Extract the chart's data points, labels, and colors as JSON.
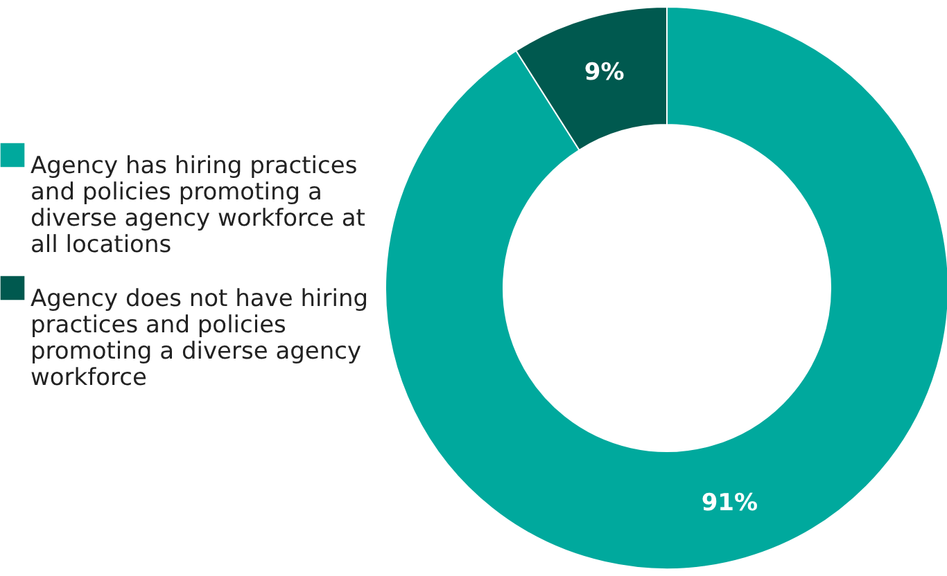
{
  "chart_data": {
    "type": "donut",
    "categories": [
      "Agency has hiring practices and policies promoting a diverse agency workforce at all locations",
      "Agency does not have hiring practices and policies promoting a diverse agency workforce"
    ],
    "values": [
      91,
      9
    ],
    "colors": [
      "#00a99d",
      "#00594f"
    ],
    "value_labels": [
      "91%",
      "9%"
    ],
    "legend": "left"
  }
}
